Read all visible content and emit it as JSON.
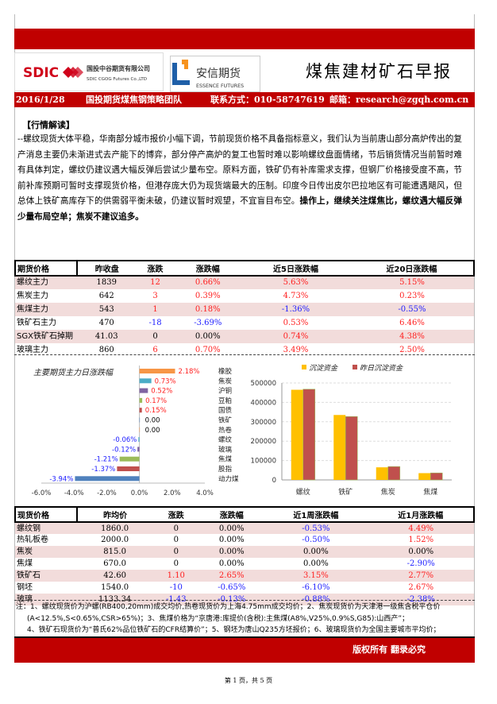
{
  "header": {
    "company1_name": "国投中谷期货有限公司",
    "company1_en": "SDIC CGOG Futures Co.,LTD",
    "company1_logo": "SDIC",
    "company2_name": "安信期货",
    "company2_en": "ESSENCE FUTURES",
    "title": "煤焦建材矿石早报",
    "date": "2016/1/28",
    "team": "国投期货煤焦钢策略团队",
    "contact": "联系方式：010-58747619",
    "email": "邮箱：research@zgqh.com.cn"
  },
  "analysis": {
    "heading": "【行情解读】",
    "body": "--螺纹现货大体平稳，华南部分城市报价小幅下调，节前现货价格不具备指标意义，我们认为当前唐山部分高炉传出的复产消息主要仍未渐进式去产能下的博弈，部分停产高炉的复工也暂时难以影响螺纹盘面情绪，节后销货情况当前暂时难有具体判定，螺纹仍建议遇大幅反弹后尝试少量布空。原料方面，铁矿仍有补库需求支撑，但钢厂价格接受度不高，节前补库预期可暂时支撑现货价格，但港存庞大仍为现货端最大的压制。印度今日传出皮尔巴拉地区有可能遭遇飓风，但总体上铁矿高库存下的供需弱平衡未破，仍建议暂时观望，不宜盲目布空。",
    "conclusion": "操作上，继续关注煤焦比，螺纹遇大幅反弹少量布局空单；焦炭不建议追多。"
  },
  "futures_table": {
    "headers": [
      "期货价格",
      "昨收盘",
      "涨跌",
      "涨跌幅",
      "近5日涨跌幅",
      "近20日涨跌幅"
    ],
    "rows": [
      [
        "螺纹主力",
        "1839",
        "12",
        "0.66%",
        "5.63%",
        "5.15%"
      ],
      [
        "焦炭主力",
        "642",
        "3",
        "0.39%",
        "4.73%",
        "0.23%"
      ],
      [
        "焦煤主力",
        "543",
        "1",
        "0.18%",
        "-1.36%",
        "-0.55%"
      ],
      [
        "铁矿石主力",
        "470",
        "-18",
        "-3.69%",
        "0.53%",
        "6.46%"
      ],
      [
        "SGX铁矿石掉期",
        "41.03",
        "0",
        "0.00%",
        "0.74%",
        "4.38%"
      ],
      [
        "玻璃主力",
        "860",
        "6",
        "0.70%",
        "3.49%",
        "2.50%"
      ]
    ]
  },
  "chart_data": [
    {
      "type": "bar",
      "orientation": "horizontal",
      "title": "主要期货主力日涨跌幅",
      "categories": [
        "橡胶",
        "焦炭",
        "沪铜",
        "豆粕",
        "国债",
        "铁矿",
        "热卷",
        "螺纹",
        "玻璃",
        "焦煤",
        "股指",
        "动力煤"
      ],
      "values": [
        2.18,
        0.73,
        0.52,
        0.17,
        0.15,
        0.0,
        0.0,
        -0.06,
        -0.12,
        -1.21,
        -1.37,
        -3.94
      ],
      "data_labels": [
        "2.18%",
        "0.73%",
        "0.52%",
        "0.17%",
        "0.15%",
        "0.00",
        "0.00",
        "-0.06%",
        "-0.12%",
        "-1.21%",
        "-1.37%",
        "-3.94%"
      ],
      "bar_colors": [
        "#f79646",
        "#4bacc6",
        "#8064a2",
        "#9bbb59",
        "#c0504d",
        "#4f81bd",
        "#f79646",
        "#4bacc6",
        "#8064a2",
        "#9bbb59",
        "#c0504d",
        "#4f81bd"
      ],
      "xlim": [
        -6.0,
        4.0
      ],
      "xticks": [
        "-6.0%",
        "-4.0%",
        "-2.0%",
        "0.0%",
        "2.0%",
        "4.0%"
      ],
      "positive_label_color": "#ff2020",
      "negative_label_color": "#2020ff"
    },
    {
      "type": "bar",
      "categories": [
        "螺纹",
        "铁矿",
        "焦炭",
        "焦煤"
      ],
      "series": [
        {
          "name": "沉淀资金",
          "color": "#ffc000",
          "values": [
            465000,
            335000,
            65000,
            35000
          ]
        },
        {
          "name": "昨日沉淀资金",
          "color": "#c0504d",
          "values": [
            468000,
            327000,
            69000,
            36000
          ]
        }
      ],
      "ylim": [
        0,
        500000
      ],
      "yticks": [
        "0",
        "100000",
        "200000",
        "300000",
        "400000",
        "500000"
      ],
      "legend": "top",
      "grid": true
    }
  ],
  "spot_table": {
    "headers": [
      "现货价格",
      "昨均价",
      "涨跌",
      "涨跌幅",
      "近1周涨跌幅",
      "近1月涨跌幅"
    ],
    "rows": [
      [
        "螺纹钢",
        "1860.0",
        "0",
        "0.00%",
        "-0.53%",
        "4.49%"
      ],
      [
        "热轧板卷",
        "2000.0",
        "0",
        "0.00%",
        "-0.50%",
        "1.52%"
      ],
      [
        "焦炭",
        "815.0",
        "0",
        "0.00%",
        "0.00%",
        "0.00%"
      ],
      [
        "焦煤",
        "670.0",
        "0",
        "0.00%",
        "0.00%",
        "-2.90%"
      ],
      [
        "铁矿石",
        "42.60",
        "1.10",
        "2.65%",
        "3.15%",
        "2.77%"
      ],
      [
        "钢坯",
        "1540.0",
        "-10",
        "-0.65%",
        "-6.10%",
        "2.67%"
      ],
      [
        "玻璃",
        "1133.34",
        "-1.43",
        "-0.13%",
        "-0.88%",
        "-2.38%"
      ]
    ]
  },
  "notes": [
    "注：1、螺纹现货价为沪螺(RB400,20mm)成交均价,热卷现货价为上海4.75mm成交均价；2、焦炭现货价为天津港一级焦含税平仓价",
    "(A<12.5%,S<0.65%,CSR>65%)；3、焦煤价格为“京唐港:库提价(含税):主焦煤(A8%,V25%,0.9%S,G85):山西产”；",
    "4、铁矿石现货价为“普氏62%品位铁矿石的CFR结算价”；5、钢坯为唐山Q235方坯报价；6、玻璃现货价为全国主要城市平均价；"
  ],
  "footer": {
    "copyright": "版权所有 翻录必究",
    "page": "第 1 页，共 5 页"
  },
  "colors": {
    "brand_red": "#c00000",
    "row_pink": "#f2dcdb",
    "up": "#ff2020",
    "down": "#2020ff"
  }
}
